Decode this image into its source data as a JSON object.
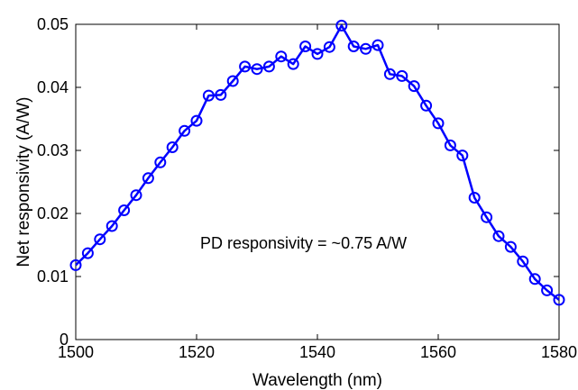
{
  "chart_data": {
    "type": "line",
    "title": "",
    "xlabel": "Wavelength (nm)",
    "ylabel": "Net responsivity (A/W)",
    "xlim": [
      1500,
      1580
    ],
    "ylim": [
      0,
      0.05
    ],
    "xticks": [
      "1500",
      "1520",
      "1540",
      "1560",
      "1580"
    ],
    "yticks": [
      "0",
      "0.01",
      "0.02",
      "0.03",
      "0.04",
      "0.05"
    ],
    "grid": false,
    "annotation": "PD responsivity = ~0.75 A/W",
    "series": [
      {
        "color": "#0000ff",
        "marker": "circle",
        "x": [
          1500,
          1502,
          1504,
          1506,
          1508,
          1510,
          1512,
          1514,
          1516,
          1518,
          1520,
          1522,
          1524,
          1526,
          1528,
          1530,
          1532,
          1534,
          1536,
          1538,
          1540,
          1542,
          1544,
          1546,
          1548,
          1550,
          1552,
          1554,
          1556,
          1558,
          1560,
          1562,
          1564,
          1566,
          1568,
          1570,
          1572,
          1574,
          1576,
          1578,
          1580
        ],
        "y": [
          0.0118,
          0.0137,
          0.0159,
          0.018,
          0.0205,
          0.0229,
          0.0256,
          0.0281,
          0.0305,
          0.0331,
          0.0347,
          0.0387,
          0.0388,
          0.041,
          0.0433,
          0.0429,
          0.0433,
          0.0449,
          0.0437,
          0.0465,
          0.0453,
          0.0464,
          0.0498,
          0.0465,
          0.0461,
          0.0467,
          0.0421,
          0.0418,
          0.0402,
          0.0371,
          0.0343,
          0.0308,
          0.0292,
          0.0225,
          0.0194,
          0.0164,
          0.0147,
          0.0124,
          0.0096,
          0.0078,
          0.0063
        ]
      }
    ]
  }
}
